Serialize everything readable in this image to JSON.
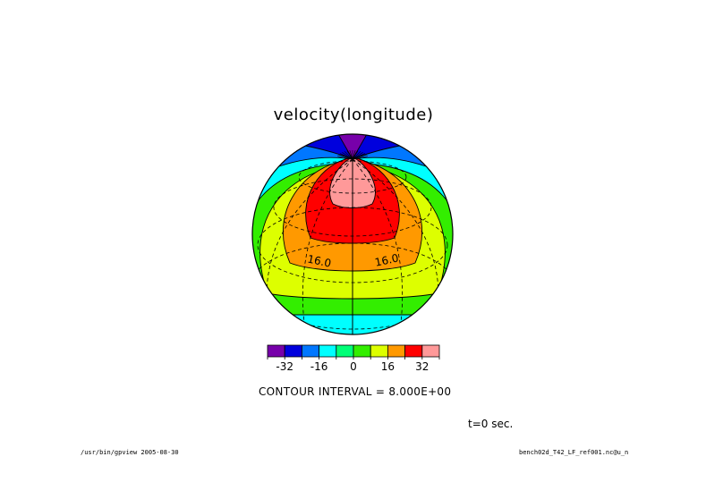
{
  "chart_data": {
    "type": "contour-filled-map",
    "projection": "orthographic",
    "title": "velocity(longitude)",
    "contour_interval_text": "CONTOUR INTERVAL = 8.000E+00",
    "time_text": "t=0 sec.",
    "contour_labels": [
      "16.0",
      "16.0"
    ],
    "colorbar": {
      "levels": [
        -40,
        -32,
        -24,
        -16,
        -8,
        0,
        8,
        16,
        24,
        32,
        40
      ],
      "colors": [
        "#7700aa",
        "#0000dd",
        "#0077ff",
        "#00ffff",
        "#00ff77",
        "#33ee00",
        "#ddff00",
        "#ff9900",
        "#ff0000",
        "#ff9999"
      ],
      "tick_labels": [
        "-32",
        "-16",
        "0",
        "16",
        "32"
      ]
    }
  },
  "footer": {
    "left": "/usr/bin/gpview  2005-08-30",
    "right": "bench02d_T42_LF_ref001.nc@u_n"
  }
}
